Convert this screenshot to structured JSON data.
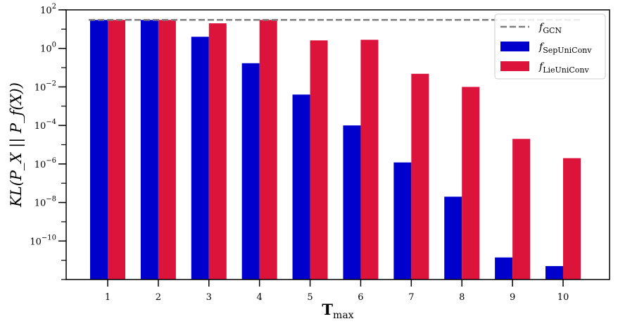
{
  "chart_data": {
    "type": "bar",
    "title": "",
    "xlabel": {
      "main": "T",
      "sub": "max"
    },
    "ylabel": "KL(P_X || P_f(X))",
    "yscale": "log",
    "ylim": [
      1e-12,
      100
    ],
    "categories": [
      "1",
      "2",
      "3",
      "4",
      "5",
      "6",
      "7",
      "8",
      "9",
      "10"
    ],
    "y_tick_labels": [
      {
        "base": "10",
        "exp": "2",
        "value": 100
      },
      {
        "base": "10",
        "exp": "0",
        "value": 1
      },
      {
        "base": "10",
        "exp": "−2",
        "value": 0.01
      },
      {
        "base": "10",
        "exp": "−4",
        "value": 0.0001
      },
      {
        "base": "10",
        "exp": "−6",
        "value": 1e-06
      },
      {
        "base": "10",
        "exp": "−8",
        "value": 1e-08
      },
      {
        "base": "10",
        "exp": "−10",
        "value": 1e-10
      }
    ],
    "reference_line": {
      "name": "f_GCN",
      "value": 30,
      "style": "dashed",
      "color": "#808080"
    },
    "series": [
      {
        "name": "f_SepUniConv",
        "color": "#0000cd",
        "values": [
          30,
          30,
          4,
          0.17,
          0.004,
          0.0001,
          1.2e-06,
          2e-08,
          1.4e-11,
          5e-12
        ]
      },
      {
        "name": "f_LieUniConv",
        "color": "#dc143c",
        "values": [
          30,
          30,
          20,
          30,
          2.6,
          2.8,
          0.048,
          0.01,
          2e-05,
          2e-06
        ]
      }
    ],
    "legend": {
      "position": "top-right",
      "entries": [
        {
          "kind": "line",
          "base": "f",
          "sub": "GCN",
          "color": "#808080"
        },
        {
          "kind": "bar",
          "base": "f",
          "sub": "SepUniConv",
          "color": "#0000cd"
        },
        {
          "kind": "bar",
          "base": "f",
          "sub": "LieUniConv",
          "color": "#dc143c"
        }
      ]
    },
    "grid": false
  }
}
